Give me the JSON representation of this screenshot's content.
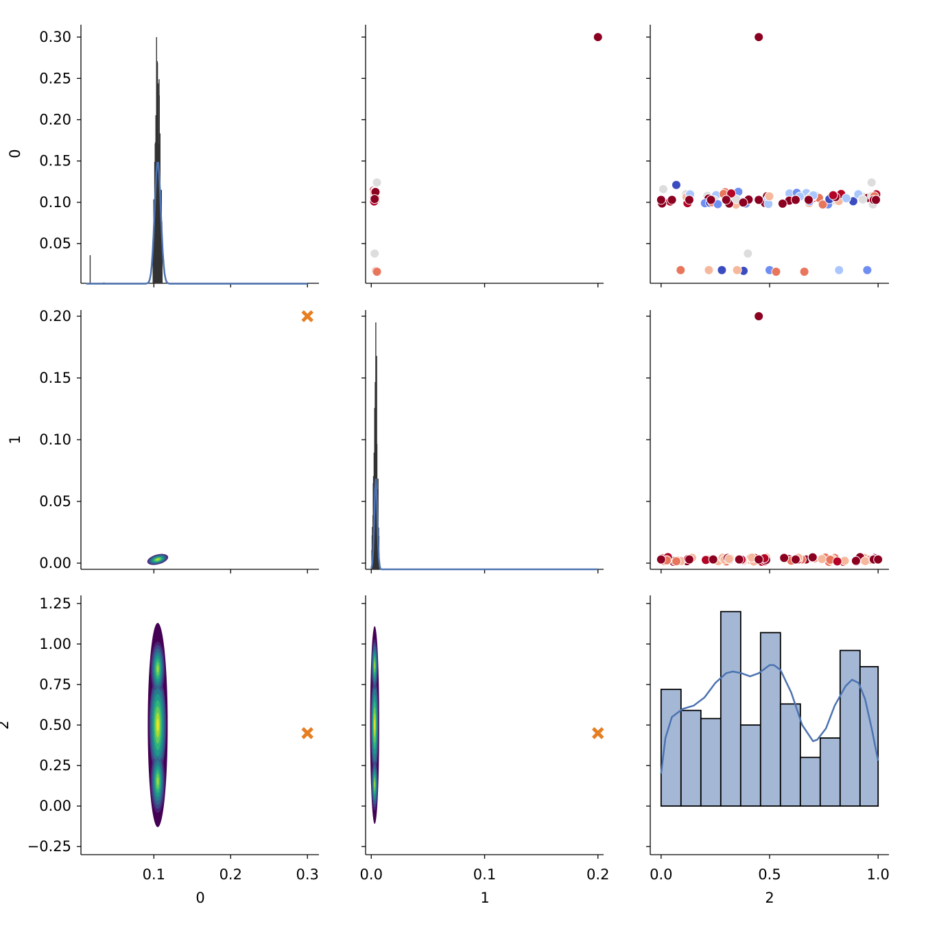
{
  "chart_data": {
    "type": "pairplot",
    "variables": [
      "0",
      "1",
      "2"
    ],
    "x_axes": [
      {
        "label": "0",
        "lim": [
          0.005,
          0.315
        ],
        "ticks": [
          0.1,
          0.2,
          0.3
        ],
        "tick_labels": [
          "0.1",
          "0.2",
          "0.3"
        ]
      },
      {
        "label": "1",
        "lim": [
          -0.005,
          0.205
        ],
        "ticks": [
          0.0,
          0.1,
          0.2
        ],
        "tick_labels": [
          "0.0",
          "0.1",
          "0.2"
        ]
      },
      {
        "label": "2",
        "lim": [
          -0.05,
          1.05
        ],
        "ticks": [
          0.0,
          0.5,
          1.0
        ],
        "tick_labels": [
          "0.0",
          "0.5",
          "1.0"
        ]
      }
    ],
    "y_axes": [
      {
        "label": "0",
        "lim": [
          0.002,
          0.315
        ],
        "ticks": [
          0.05,
          0.1,
          0.15,
          0.2,
          0.25,
          0.3
        ],
        "tick_labels": [
          "0.05",
          "0.10",
          "0.15",
          "0.20",
          "0.25",
          "0.30"
        ]
      },
      {
        "label": "1",
        "lim": [
          -0.005,
          0.205
        ],
        "ticks": [
          0.0,
          0.05,
          0.1,
          0.15,
          0.2
        ],
        "tick_labels": [
          "0.00",
          "0.05",
          "0.10",
          "0.15",
          "0.20"
        ]
      },
      {
        "label": "2",
        "lim": [
          -0.3,
          1.3
        ],
        "ticks": [
          -0.25,
          0.0,
          0.25,
          0.5,
          0.75,
          1.0,
          1.25
        ],
        "tick_labels": [
          "−0.25",
          "0.00",
          "0.25",
          "0.50",
          "0.75",
          "1.00",
          "1.25"
        ]
      }
    ],
    "outlier": {
      "var0": 0.3,
      "var1": 0.2,
      "var2": 0.45
    },
    "diag_hist": [
      {
        "var": "0",
        "peak_center": 0.105,
        "peak_height": 0.3,
        "kde_peak": 0.148,
        "kde_sd": 0.004,
        "small_spikes": [
          [
            0.017,
            0.036
          ],
          [
            0.035,
            0.003
          ]
        ]
      },
      {
        "var": "1",
        "peak_center": 0.004,
        "peak_height": 0.195,
        "kde_peak": 0.074,
        "kde_sd": 0.0013
      }
    ],
    "var2_histogram": {
      "bin_edges": [
        0.0,
        0.0917,
        0.1833,
        0.275,
        0.3667,
        0.4583,
        0.55,
        0.6417,
        0.7333,
        0.825,
        0.9167,
        1.0
      ],
      "heights": [
        0.72,
        0.59,
        0.54,
        1.2,
        0.5,
        1.07,
        0.63,
        0.3,
        0.42,
        0.96,
        0.86
      ],
      "kde": [
        [
          0.0,
          0.2
        ],
        [
          0.02,
          0.42
        ],
        [
          0.05,
          0.55
        ],
        [
          0.1,
          0.6
        ],
        [
          0.15,
          0.62
        ],
        [
          0.2,
          0.67
        ],
        [
          0.25,
          0.76
        ],
        [
          0.3,
          0.82
        ],
        [
          0.33,
          0.83
        ],
        [
          0.37,
          0.82
        ],
        [
          0.41,
          0.8
        ],
        [
          0.45,
          0.82
        ],
        [
          0.5,
          0.87
        ],
        [
          0.52,
          0.87
        ],
        [
          0.55,
          0.84
        ],
        [
          0.6,
          0.7
        ],
        [
          0.65,
          0.5
        ],
        [
          0.7,
          0.4
        ],
        [
          0.72,
          0.41
        ],
        [
          0.76,
          0.48
        ],
        [
          0.8,
          0.62
        ],
        [
          0.85,
          0.74
        ],
        [
          0.88,
          0.78
        ],
        [
          0.91,
          0.76
        ],
        [
          0.94,
          0.66
        ],
        [
          0.97,
          0.48
        ],
        [
          1.0,
          0.28
        ]
      ],
      "fill_color": "#a4b8d6",
      "line_color": "#4c72b0"
    },
    "scatter_var0_vs_var2": {
      "main_band": {
        "y_center": 0.105,
        "spread": 0.008,
        "count": 70
      },
      "low_points": [
        [
          0.09,
          0.018
        ],
        [
          0.22,
          0.018
        ],
        [
          0.28,
          0.018
        ],
        [
          0.38,
          0.017
        ],
        [
          0.35,
          0.018
        ],
        [
          0.4,
          0.038
        ],
        [
          0.5,
          0.018
        ],
        [
          0.53,
          0.016
        ],
        [
          0.66,
          0.016
        ],
        [
          0.82,
          0.018
        ],
        [
          0.95,
          0.018
        ]
      ],
      "high_point": [
        0.45,
        0.3
      ]
    },
    "scatter_var1_vs_var2": {
      "band": {
        "y_center": 0.003,
        "count": 70
      },
      "high_point": [
        0.45,
        0.2
      ]
    },
    "scatter_var0_vs_var1": {
      "cluster": {
        "x": 0.003,
        "y_center": 0.108
      },
      "low_points": [
        [
          0.003,
          0.038
        ],
        [
          0.004,
          0.017
        ],
        [
          0.005,
          0.016
        ]
      ],
      "high_point": [
        0.2,
        0.3
      ]
    },
    "kde_contours": [
      {
        "panel": "var1_vs_var0",
        "center": [
          0.105,
          0.003
        ],
        "x_halfwidth": 0.014,
        "y_halfwidth": 0.004
      },
      {
        "panel": "var2_vs_var0",
        "center": [
          0.105,
          0.5
        ],
        "x_halfwidth": 0.013,
        "y_halfwidth": 0.63
      },
      {
        "panel": "var2_vs_var1",
        "center": [
          0.003,
          0.5
        ],
        "x_halfwidth": 0.004,
        "y_halfwidth": 0.61
      }
    ],
    "colors": {
      "outlier_marker": "#e67e22",
      "kde_line": "#4c72b0",
      "hist_dark": "#333333",
      "scatter_palette": [
        "#3b4cc0",
        "#6f8ef1",
        "#aac7fd",
        "#dddddd",
        "#f6b89c",
        "#e8765c",
        "#b40426",
        "#8b0021"
      ]
    }
  }
}
